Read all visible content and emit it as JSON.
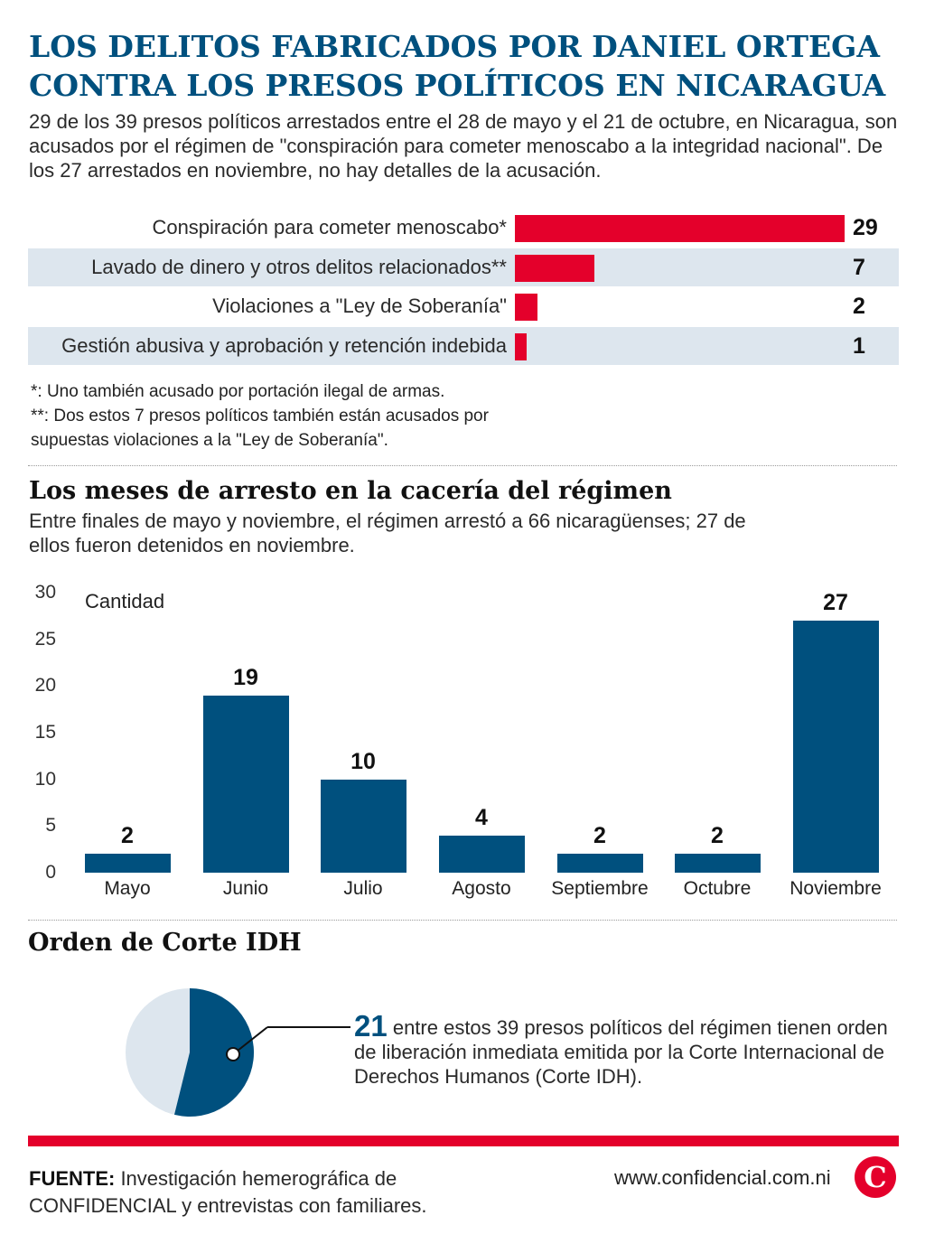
{
  "header": {
    "title_line1": "LOS DELITOS FABRICADOS POR DANIEL ORTEGA",
    "title_line2": "CONTRA LOS PRESOS POLÍTICOS EN NICARAGUA",
    "intro": "29 de los 39 presos políticos arrestados entre el 28 de mayo y el 21 de octubre, en Nicaragua, son acusados por el régimen de \"conspiración para cometer menoscabo a la integridad nacional\". De los 27 arrestados en noviembre, no hay detalles de la acusación."
  },
  "notes": {
    "note1": "*: Uno también acusado por portación ilegal de armas.",
    "note2": "**: Dos estos 7 presos políticos también están acusados por supuestas violaciones a la \"Ley de Soberanía\"."
  },
  "section2": {
    "title": "Los meses de arresto en la cacería del régimen",
    "subtitle": "Entre finales de mayo y noviembre, el régimen arrestó a 66 nicaragüenses; 27 de ellos fueron detenidos en noviembre."
  },
  "section3": {
    "title": "Orden de Corte IDH",
    "big_number": "21",
    "text": " entre estos 39 presos políticos del régimen tienen orden de liberación inmediata emitida por la Corte Internacional de Derechos Humanos (Corte IDH)."
  },
  "footer": {
    "source_label": "FUENTE:",
    "source_text_a": " Investigación hemerográfica de ",
    "source_org": "CONFIDENCIAL",
    "source_text_b": " y entrevistas con familiares.",
    "site": "www.confidencial.com.ni",
    "logo_letter": "C"
  },
  "colors": {
    "title": "#00507e",
    "red_accent": "#e4002b",
    "bar_blue": "#00507e",
    "row_shade": "#dde6ee",
    "pie_light": "#dde6ee"
  },
  "chart_data": [
    {
      "type": "bar",
      "orientation": "horizontal",
      "categories": [
        "Conspiración para cometer menoscabo*",
        "Lavado de dinero y otros delitos relacionados**",
        "Violaciones a \"Ley de Soberanía\"",
        "Gestión abusiva y aprobación y retención indebida"
      ],
      "values": [
        29,
        7,
        2,
        1
      ],
      "data_labels": [
        "29",
        "7",
        "2",
        "1"
      ],
      "xlim": [
        0,
        29
      ],
      "grid": false
    },
    {
      "type": "bar",
      "orientation": "vertical",
      "categories": [
        "Mayo",
        "Junio",
        "Julio",
        "Agosto",
        "Septiembre",
        "Octubre",
        "Noviembre"
      ],
      "values": [
        2,
        19,
        10,
        4,
        2,
        2,
        27
      ],
      "data_labels": [
        "2",
        "19",
        "10",
        "4",
        "2",
        "2",
        "27"
      ],
      "ylabel": "Cantidad",
      "ylim": [
        0,
        30
      ],
      "yticks": [
        "0",
        "5",
        "10",
        "15",
        "20",
        "25",
        "30"
      ],
      "grid": false
    },
    {
      "type": "pie",
      "values": [
        21,
        18
      ],
      "total": 39,
      "highlight_index": 0
    }
  ]
}
